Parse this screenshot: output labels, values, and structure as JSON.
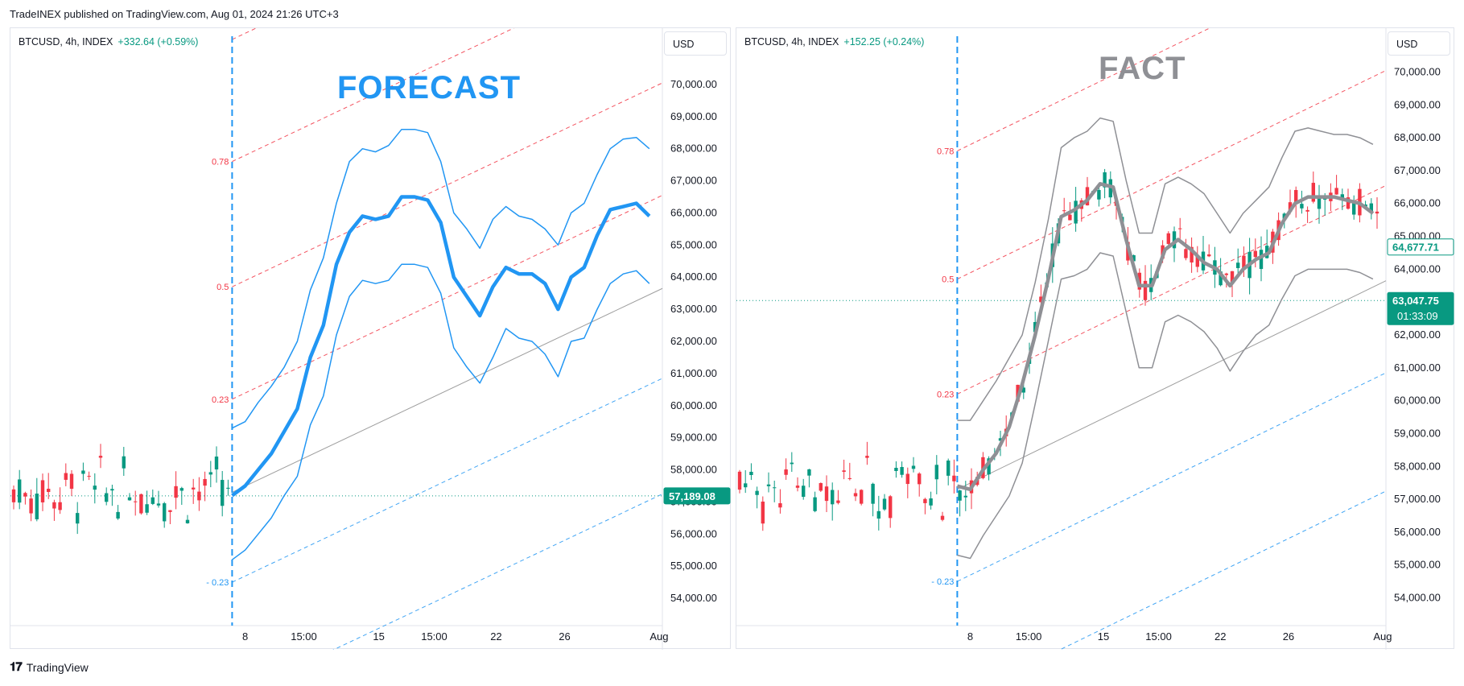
{
  "header": {
    "published": "TradeINEX published on TradingView.com, Aug 01, 2024 21:26 UTC+3"
  },
  "footer": {
    "brand": "TradingView"
  },
  "colors": {
    "blue": "#2196f3",
    "grey": "#8f9095",
    "green": "#089981",
    "red": "#f23645",
    "fib_red": "#f23645",
    "fib_blue": "#2196f3"
  },
  "panes": [
    {
      "title": "FORECAST",
      "title_color": "#2196f3",
      "legend": {
        "symbol": "BTCUSD, 4h, INDEX",
        "change": "+332.64 (+0.59%)"
      },
      "currency": "USD",
      "price_badges": [
        {
          "text": "57,189.08",
          "color": "#089981"
        }
      ]
    },
    {
      "title": "FACT",
      "title_color": "#8f9095",
      "legend": {
        "symbol": "BTCUSD, 4h, INDEX",
        "change": "+152.25 (+0.24%)"
      },
      "currency": "USD",
      "price_badges": [
        {
          "text": "64,677.71",
          "color": "#089981",
          "outline": true
        },
        {
          "text": "63,047.75",
          "sub": "01:33:09",
          "color": "#089981"
        }
      ]
    }
  ],
  "chart_data": [
    {
      "type": "line",
      "title": "FORECAST",
      "y_axis": {
        "ticks": [
          54000,
          55000,
          56000,
          57000,
          58000,
          59000,
          60000,
          61000,
          62000,
          63000,
          64000,
          65000,
          66000,
          67000,
          68000,
          69000,
          70000
        ],
        "tick_labels": [
          "54,000.00",
          "55,000.00",
          "56,000.00",
          "57,000.00",
          "58,000.00",
          "59,000.00",
          "60,000.00",
          "61,000.00",
          "62,000.00",
          "63,000.00",
          "64,000.00",
          "65,000.00",
          "66,000.00",
          "67,000.00",
          "68,000.00",
          "69,000.00",
          "70,000.00"
        ],
        "ylim": [
          53400,
          71000
        ]
      },
      "x_axis": {
        "tick_labels": [
          "8",
          "15:00",
          "15",
          "15:00",
          "22",
          "26",
          "Aug"
        ],
        "tick_pos": [
          8.2,
          10,
          12.3,
          14,
          15.9,
          18.0,
          20.9
        ],
        "xlim": [
          1,
          21
        ]
      },
      "fib_levels": [
        "0.78",
        "0.5",
        "0.23",
        "- 0.23"
      ],
      "last_price": 57189.08,
      "x": [
        7.8,
        8.2,
        8.6,
        9.0,
        9.4,
        9.8,
        10.2,
        10.6,
        11.0,
        11.4,
        11.8,
        12.2,
        12.6,
        13.0,
        13.4,
        13.8,
        14.2,
        14.6,
        15.0,
        15.4,
        15.8,
        16.2,
        16.6,
        17.0,
        17.4,
        17.8,
        18.2,
        18.6,
        19.0,
        19.4,
        19.8,
        20.2,
        20.6
      ],
      "series": [
        {
          "values": [
            59300,
            59500,
            60100,
            60600,
            61200,
            62000,
            63600,
            64600,
            66300,
            67600,
            68000,
            67900,
            68100,
            68600,
            68600,
            68500,
            67600,
            66000,
            65500,
            64900,
            65800,
            66200,
            65900,
            65800,
            65500,
            65000,
            66000,
            66300,
            67200,
            68000,
            68300,
            68350,
            68000
          ]
        },
        {
          "values": [
            57200,
            57500,
            58000,
            58500,
            59200,
            59900,
            61500,
            62500,
            64400,
            65400,
            65900,
            65800,
            65900,
            66500,
            66500,
            66400,
            65700,
            64000,
            63400,
            62800,
            63700,
            64300,
            64100,
            64100,
            63800,
            63000,
            64000,
            64300,
            65300,
            66100,
            66200,
            66300,
            65900
          ]
        },
        {
          "values": [
            55200,
            55500,
            56000,
            56500,
            57200,
            57800,
            59400,
            60300,
            62200,
            63400,
            63900,
            63800,
            63900,
            64400,
            64400,
            64300,
            63500,
            61800,
            61200,
            60700,
            61500,
            62400,
            62100,
            62000,
            61600,
            60900,
            62000,
            62100,
            63000,
            63800,
            64100,
            64200,
            63800
          ]
        }
      ]
    },
    {
      "type": "line",
      "title": "FACT",
      "y_axis": {
        "ticks": [
          54000,
          55000,
          56000,
          57000,
          58000,
          59000,
          60000,
          61000,
          62000,
          63000,
          64000,
          65000,
          66000,
          67000,
          68000,
          69000,
          70000
        ],
        "tick_labels": [
          "54,000.00",
          "55,000.00",
          "56,000.00",
          "57,000.00",
          "58,000.00",
          "59,000.00",
          "60,000.00",
          "61,000.00",
          "62,000.00",
          "63,000.00",
          "64,000.00",
          "65,000.00",
          "66,000.00",
          "67,000.00",
          "68,000.00",
          "69,000.00",
          "70,000.00"
        ],
        "ylim": [
          53400,
          70600
        ]
      },
      "x_axis": {
        "tick_labels": [
          "8",
          "15:00",
          "15",
          "15:00",
          "22",
          "26",
          "Aug"
        ],
        "tick_pos": [
          8.2,
          10,
          12.3,
          14,
          15.9,
          18.0,
          20.9
        ],
        "xlim": [
          1,
          21
        ]
      },
      "fib_levels": [
        "0.78",
        "0.5",
        "0.23",
        "- 0.23"
      ],
      "last_price": 63047.75,
      "x": [
        7.8,
        8.2,
        8.6,
        9.0,
        9.4,
        9.8,
        10.2,
        10.6,
        11.0,
        11.4,
        11.8,
        12.2,
        12.6,
        13.0,
        13.4,
        13.8,
        14.2,
        14.6,
        15.0,
        15.4,
        15.8,
        16.2,
        16.6,
        17.0,
        17.4,
        17.8,
        18.2,
        18.6,
        19.0,
        19.4,
        19.8,
        20.2,
        20.6
      ],
      "series": [
        {
          "values": [
            59400,
            59400,
            60000,
            60600,
            61300,
            62000,
            63600,
            65500,
            67700,
            68000,
            68200,
            68600,
            68500,
            66700,
            65100,
            65100,
            66600,
            66800,
            66600,
            66300,
            65700,
            65100,
            65700,
            66100,
            66500,
            67400,
            68200,
            68300,
            68200,
            68100,
            68100,
            68000,
            67800
          ]
        },
        {
          "values": [
            57400,
            57300,
            57900,
            58400,
            59200,
            60500,
            62000,
            63700,
            65600,
            65800,
            66100,
            66600,
            66500,
            64900,
            63500,
            63500,
            64600,
            64900,
            64600,
            64200,
            64000,
            63500,
            64000,
            64300,
            64500,
            65400,
            66000,
            66200,
            66200,
            66200,
            66100,
            66000,
            65700
          ]
        },
        {
          "values": [
            55300,
            55200,
            55900,
            56500,
            57100,
            58100,
            59900,
            61800,
            63700,
            63800,
            64000,
            64500,
            64400,
            62700,
            61000,
            61000,
            62400,
            62600,
            62400,
            62100,
            61600,
            60900,
            61500,
            62000,
            62300,
            63100,
            63800,
            64000,
            64000,
            64000,
            64000,
            63900,
            63700
          ]
        }
      ]
    }
  ]
}
